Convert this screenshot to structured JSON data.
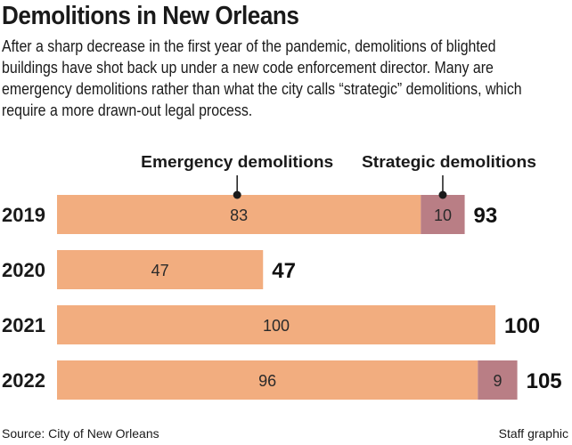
{
  "title": "Demolitions in New Orleans",
  "subtitle": "After a sharp decrease in the first year of the pandemic, demolitions of blighted buildings have shot back up under a new code enforcement director. Many are emergency demolitions rather than what the city calls “strategic” demolitions, which require a more drawn-out legal process.",
  "source": "Source: City of New Orleans",
  "credit": "Staff graphic",
  "chart_data": {
    "type": "bar",
    "stacked": true,
    "orientation": "horizontal",
    "categories": [
      "2019",
      "2020",
      "2021",
      "2022"
    ],
    "series": [
      {
        "name": "Emergency demolitions",
        "values": [
          83,
          47,
          100,
          96
        ],
        "color": "#f2ad7f"
      },
      {
        "name": "Strategic demolitions",
        "values": [
          10,
          0,
          0,
          9
        ],
        "color": "#b97e85"
      }
    ],
    "totals": [
      93,
      47,
      100,
      105
    ],
    "legend_placement": "top, callouts",
    "grid": false
  }
}
